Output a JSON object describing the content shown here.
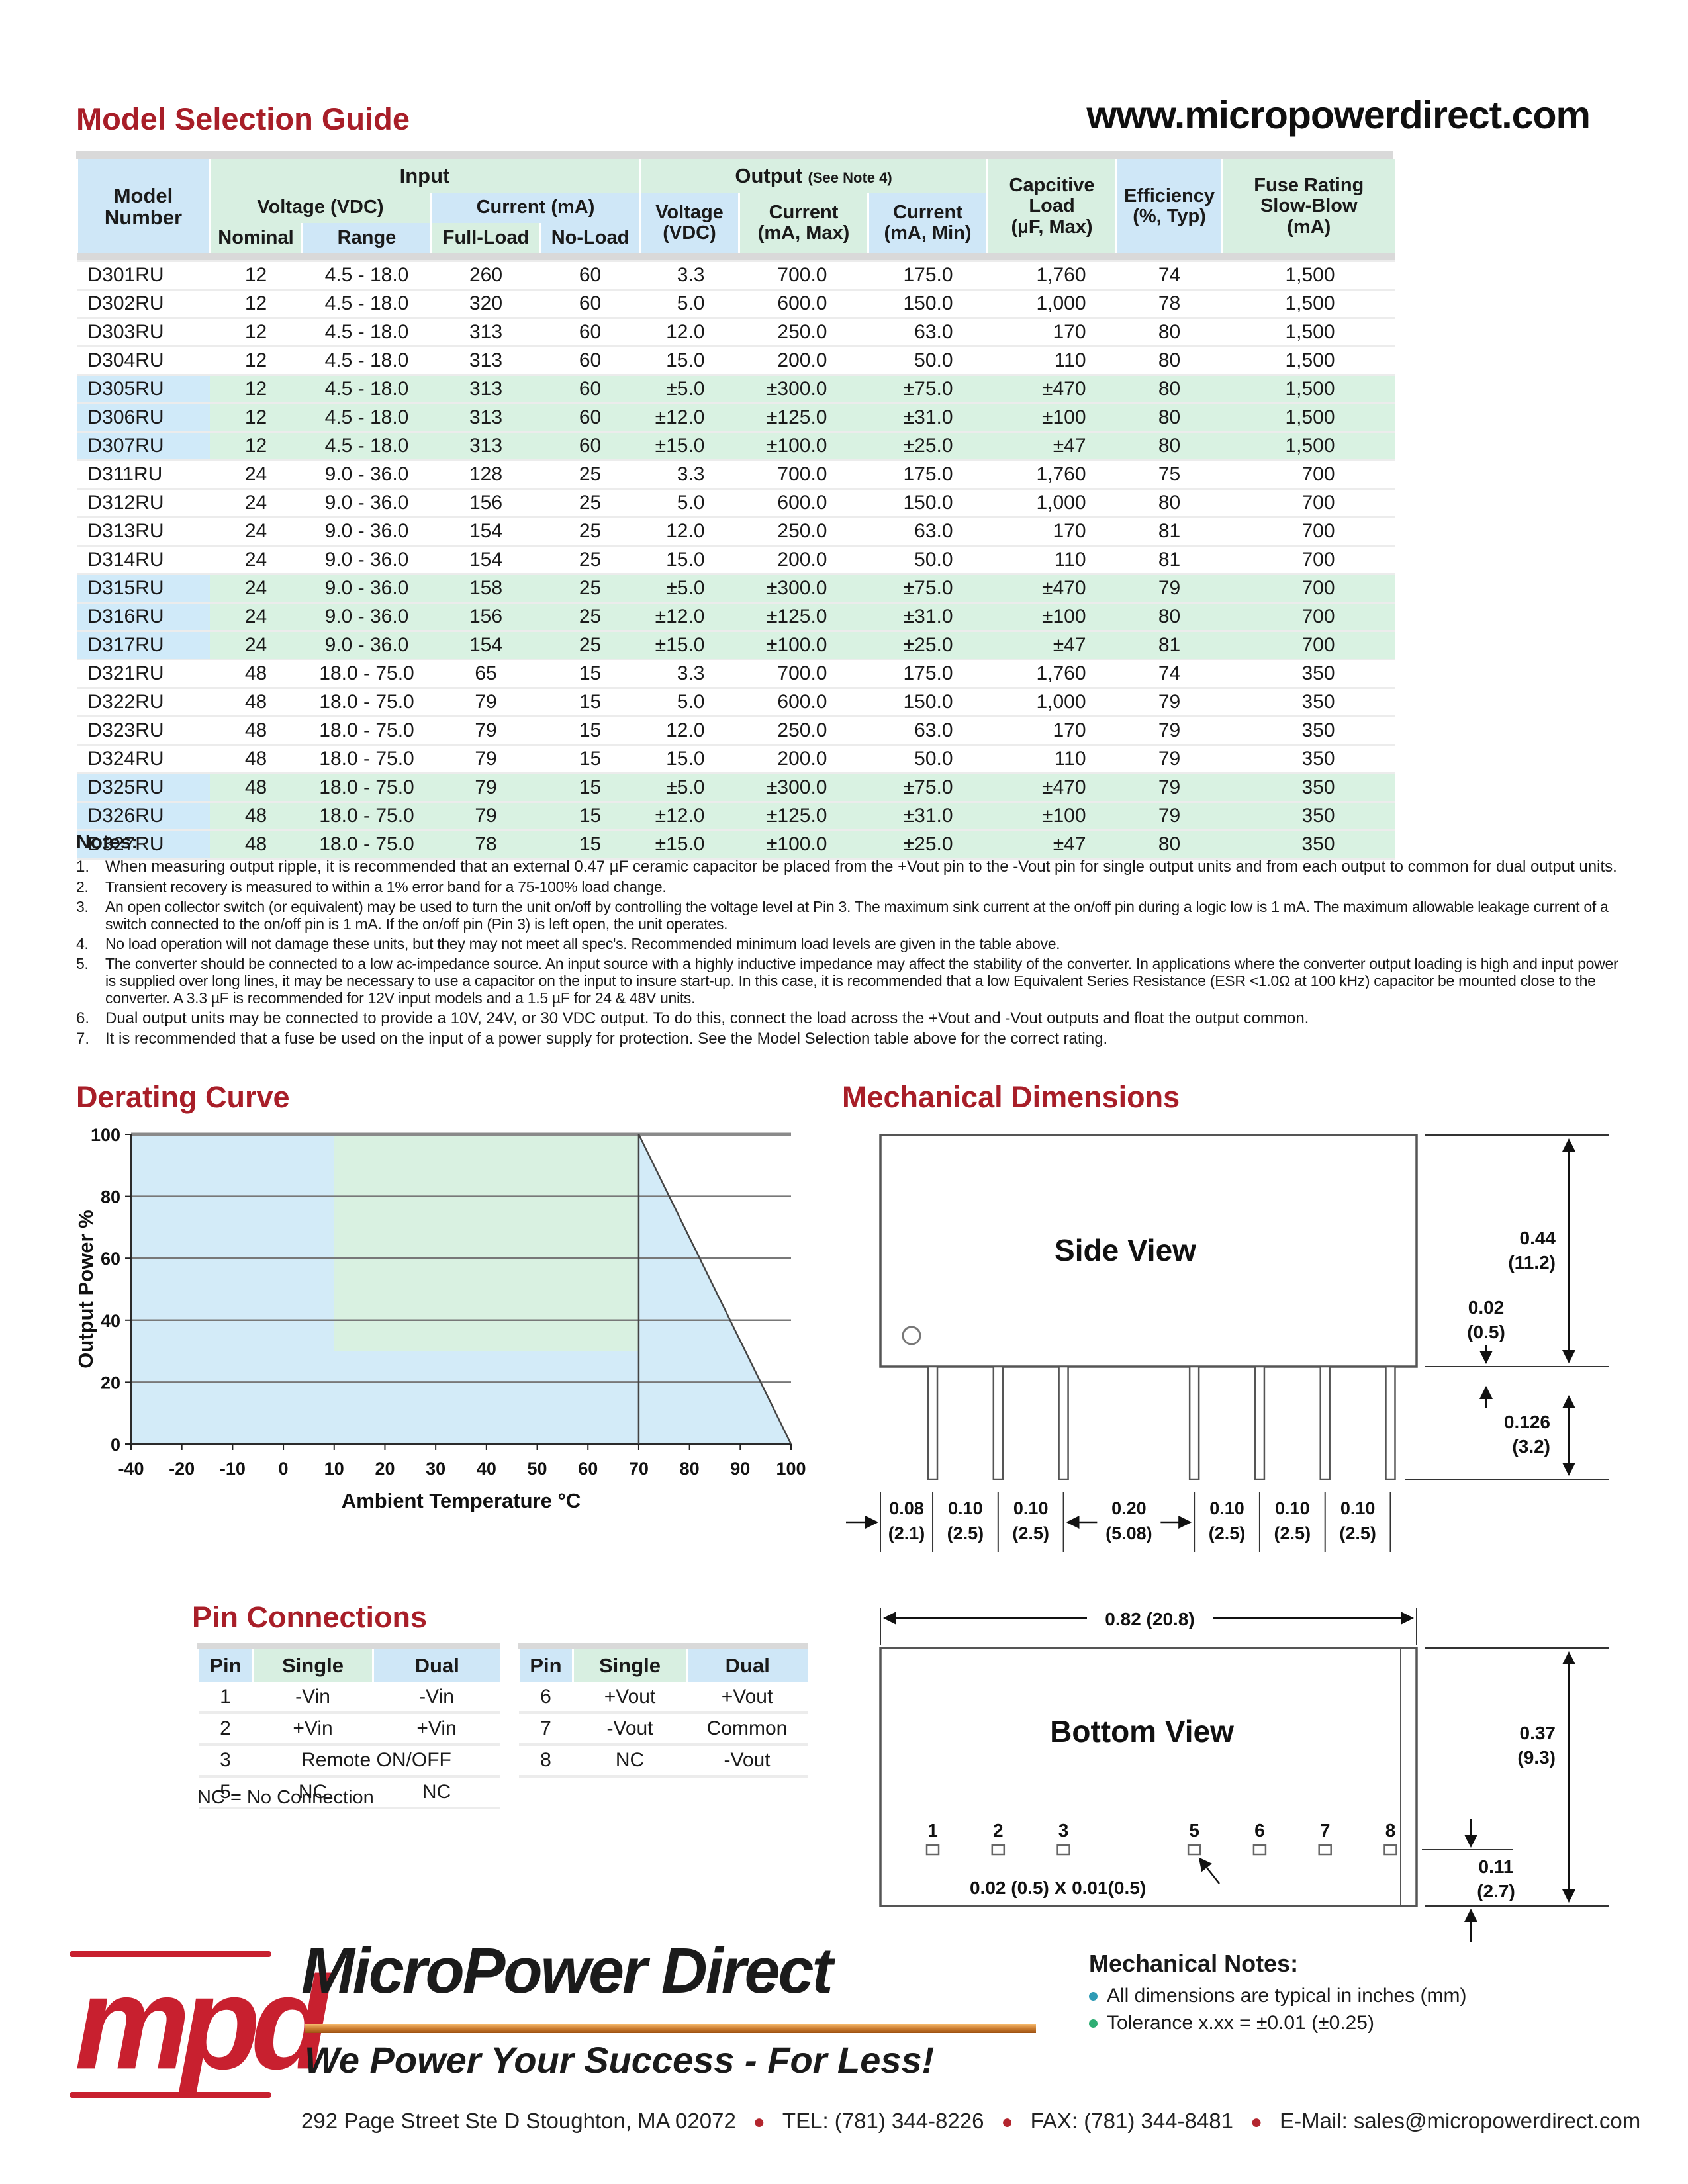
{
  "page": {
    "title": "Model Selection Guide",
    "url": "www.micropowerdirect.com"
  },
  "model_table": {
    "groups": {
      "model": "Model\nNumber",
      "input": "Input",
      "output": "Output",
      "output_note": "(See Note 4)",
      "cap": "Capcitive\nLoad\n(µF, Max)",
      "eff": "Efficiency\n(%, Typ)",
      "fuse": "Fuse Rating\nSlow-Blow\n(mA)"
    },
    "sub": {
      "voltage_in": "Voltage (VDC)",
      "current_in": "Current (mA)",
      "voltage_out": "Voltage\n(VDC)",
      "current_max": "Current\n(mA, Max)",
      "current_min": "Current\n(mA, Min)"
    },
    "cols": {
      "nominal": "Nominal",
      "range": "Range",
      "full_load": "Full-Load",
      "no_load": "No-Load"
    },
    "rows": [
      {
        "m": "D301RU",
        "vn": "12",
        "vr": "4.5 - 18.0",
        "fl": "260",
        "nl": "60",
        "vo": "3.3",
        "imax": "700.0",
        "imin": "175.0",
        "cl": "1,760",
        "ef": "74",
        "fu": "1,500",
        "dual": false
      },
      {
        "m": "D302RU",
        "vn": "12",
        "vr": "4.5 - 18.0",
        "fl": "320",
        "nl": "60",
        "vo": "5.0",
        "imax": "600.0",
        "imin": "150.0",
        "cl": "1,000",
        "ef": "78",
        "fu": "1,500",
        "dual": false
      },
      {
        "m": "D303RU",
        "vn": "12",
        "vr": "4.5 - 18.0",
        "fl": "313",
        "nl": "60",
        "vo": "12.0",
        "imax": "250.0",
        "imin": "63.0",
        "cl": "170",
        "ef": "80",
        "fu": "1,500",
        "dual": false
      },
      {
        "m": "D304RU",
        "vn": "12",
        "vr": "4.5 - 18.0",
        "fl": "313",
        "nl": "60",
        "vo": "15.0",
        "imax": "200.0",
        "imin": "50.0",
        "cl": "110",
        "ef": "80",
        "fu": "1,500",
        "dual": false
      },
      {
        "m": "D305RU",
        "vn": "12",
        "vr": "4.5 - 18.0",
        "fl": "313",
        "nl": "60",
        "vo": "±5.0",
        "imax": "±300.0",
        "imin": "±75.0",
        "cl": "±470",
        "ef": "80",
        "fu": "1,500",
        "dual": true
      },
      {
        "m": "D306RU",
        "vn": "12",
        "vr": "4.5 - 18.0",
        "fl": "313",
        "nl": "60",
        "vo": "±12.0",
        "imax": "±125.0",
        "imin": "±31.0",
        "cl": "±100",
        "ef": "80",
        "fu": "1,500",
        "dual": true
      },
      {
        "m": "D307RU",
        "vn": "12",
        "vr": "4.5 - 18.0",
        "fl": "313",
        "nl": "60",
        "vo": "±15.0",
        "imax": "±100.0",
        "imin": "±25.0",
        "cl": "±47",
        "ef": "80",
        "fu": "1,500",
        "dual": true
      },
      {
        "m": "D311RU",
        "vn": "24",
        "vr": "9.0 - 36.0",
        "fl": "128",
        "nl": "25",
        "vo": "3.3",
        "imax": "700.0",
        "imin": "175.0",
        "cl": "1,760",
        "ef": "75",
        "fu": "700",
        "dual": false
      },
      {
        "m": "D312RU",
        "vn": "24",
        "vr": "9.0 - 36.0",
        "fl": "156",
        "nl": "25",
        "vo": "5.0",
        "imax": "600.0",
        "imin": "150.0",
        "cl": "1,000",
        "ef": "80",
        "fu": "700",
        "dual": false
      },
      {
        "m": "D313RU",
        "vn": "24",
        "vr": "9.0 - 36.0",
        "fl": "154",
        "nl": "25",
        "vo": "12.0",
        "imax": "250.0",
        "imin": "63.0",
        "cl": "170",
        "ef": "81",
        "fu": "700",
        "dual": false
      },
      {
        "m": "D314RU",
        "vn": "24",
        "vr": "9.0 - 36.0",
        "fl": "154",
        "nl": "25",
        "vo": "15.0",
        "imax": "200.0",
        "imin": "50.0",
        "cl": "110",
        "ef": "81",
        "fu": "700",
        "dual": false
      },
      {
        "m": "D315RU",
        "vn": "24",
        "vr": "9.0 - 36.0",
        "fl": "158",
        "nl": "25",
        "vo": "±5.0",
        "imax": "±300.0",
        "imin": "±75.0",
        "cl": "±470",
        "ef": "79",
        "fu": "700",
        "dual": true
      },
      {
        "m": "D316RU",
        "vn": "24",
        "vr": "9.0 - 36.0",
        "fl": "156",
        "nl": "25",
        "vo": "±12.0",
        "imax": "±125.0",
        "imin": "±31.0",
        "cl": "±100",
        "ef": "80",
        "fu": "700",
        "dual": true
      },
      {
        "m": "D317RU",
        "vn": "24",
        "vr": "9.0 - 36.0",
        "fl": "154",
        "nl": "25",
        "vo": "±15.0",
        "imax": "±100.0",
        "imin": "±25.0",
        "cl": "±47",
        "ef": "81",
        "fu": "700",
        "dual": true
      },
      {
        "m": "D321RU",
        "vn": "48",
        "vr": "18.0 - 75.0",
        "fl": "65",
        "nl": "15",
        "vo": "3.3",
        "imax": "700.0",
        "imin": "175.0",
        "cl": "1,760",
        "ef": "74",
        "fu": "350",
        "dual": false
      },
      {
        "m": "D322RU",
        "vn": "48",
        "vr": "18.0 - 75.0",
        "fl": "79",
        "nl": "15",
        "vo": "5.0",
        "imax": "600.0",
        "imin": "150.0",
        "cl": "1,000",
        "ef": "79",
        "fu": "350",
        "dual": false
      },
      {
        "m": "D323RU",
        "vn": "48",
        "vr": "18.0 - 75.0",
        "fl": "79",
        "nl": "15",
        "vo": "12.0",
        "imax": "250.0",
        "imin": "63.0",
        "cl": "170",
        "ef": "79",
        "fu": "350",
        "dual": false
      },
      {
        "m": "D324RU",
        "vn": "48",
        "vr": "18.0 - 75.0",
        "fl": "79",
        "nl": "15",
        "vo": "15.0",
        "imax": "200.0",
        "imin": "50.0",
        "cl": "110",
        "ef": "79",
        "fu": "350",
        "dual": false
      },
      {
        "m": "D325RU",
        "vn": "48",
        "vr": "18.0 - 75.0",
        "fl": "79",
        "nl": "15",
        "vo": "±5.0",
        "imax": "±300.0",
        "imin": "±75.0",
        "cl": "±470",
        "ef": "79",
        "fu": "350",
        "dual": true
      },
      {
        "m": "D326RU",
        "vn": "48",
        "vr": "18.0 - 75.0",
        "fl": "79",
        "nl": "15",
        "vo": "±12.0",
        "imax": "±125.0",
        "imin": "±31.0",
        "cl": "±100",
        "ef": "79",
        "fu": "350",
        "dual": true
      },
      {
        "m": "D327RU",
        "vn": "48",
        "vr": "18.0 - 75.0",
        "fl": "78",
        "nl": "15",
        "vo": "±15.0",
        "imax": "±100.0",
        "imin": "±25.0",
        "cl": "±47",
        "ef": "80",
        "fu": "350",
        "dual": true
      }
    ]
  },
  "notes": {
    "title": "Notes:",
    "items": [
      {
        "t": "When measuring output ripple, it is recommended that an external 0.47 µF ceramic capacitor be placed from the +Vout pin to the -Vout pin for single output units and from each output to common for dual output units.",
        "c": false
      },
      {
        "t": "Transient recovery is measured to within a 1% error band for a 75-100% load change.",
        "c": true
      },
      {
        "t": "An open collector switch (or equivalent) may be used to turn the unit on/off by controlling the voltage level at Pin 3. The maximum sink current at the on/off pin during a logic low is 1 mA. The maximum allowable leakage current of a switch connected to the on/off pin is 1 mA. If the on/off pin (Pin 3) is left open, the unit operates.",
        "c": true
      },
      {
        "t": "No load operation will not damage these units, but they may not meet all spec's. Recommended minimum load levels are given in the table above.",
        "c": true
      },
      {
        "t": "The converter should be connected to a low ac-impedance source. An input source with a highly inductive impedance may affect the stability of the converter. In applications where the converter output loading is high and input power is supplied over long lines, it may be necessary to use a capacitor on the input to insure start-up. In this case, it is recommended that a low Equivalent Series Resistance (ESR <1.0Ω at 100 kHz) capacitor be mounted close to the converter. A 3.3 µF is recommended for 12V input models and a 1.5 µF for 24 & 48V units.",
        "c": true
      },
      {
        "t": "Dual output units may be connected to provide a 10V, 24V, or 30 VDC output. To do this, connect the load across the +Vout and -Vout outputs and float the output common.",
        "c": false
      },
      {
        "t": "It is recommended that a fuse be used on the input of a power supply for protection. See the Model Selection table above for the correct rating.",
        "c": false
      }
    ]
  },
  "chart_data": {
    "type": "area",
    "title": "Derating Curve",
    "xlabel": "Ambient Temperature °C",
    "ylabel": "Output Power %",
    "x_ticks": [
      "-40",
      "-20",
      "-10",
      "0",
      "10",
      "20",
      "30",
      "40",
      "50",
      "60",
      "70",
      "80",
      "90",
      "100"
    ],
    "y_ticks": [
      "0",
      "20",
      "40",
      "60",
      "80",
      "100"
    ],
    "ylim": [
      0,
      100
    ],
    "curve": [
      [
        "-40",
        100
      ],
      [
        "70",
        100
      ],
      [
        "100",
        0
      ]
    ],
    "green_region": {
      "x": [
        "10",
        "70"
      ],
      "y": [
        30,
        100
      ]
    },
    "colors": {
      "area_blue": "#d3ebf8",
      "area_green": "#d9f1e1",
      "grid": "#787878",
      "axis": "#2b2b2b",
      "line": "#444444"
    }
  },
  "mech": {
    "title": "Mechanical Dimensions",
    "side": {
      "label": "Side View",
      "case_h": [
        "0.44",
        "(11.2)"
      ],
      "standoff": [
        "0.02",
        "(0.5)"
      ],
      "pin_len": [
        "0.126",
        "(3.2)"
      ],
      "spacings": [
        {
          "in": "0.08",
          "mm": "(2.1)"
        },
        {
          "in": "0.10",
          "mm": "(2.5)"
        },
        {
          "in": "0.10",
          "mm": "(2.5)"
        },
        {
          "in": "0.20",
          "mm": "(5.08)"
        },
        {
          "in": "0.10",
          "mm": "(2.5)"
        },
        {
          "in": "0.10",
          "mm": "(2.5)"
        },
        {
          "in": "0.10",
          "mm": "(2.5)"
        }
      ]
    },
    "bottom": {
      "label": "Bottom View",
      "width_dim": "0.82 (20.8)",
      "depth": [
        "0.37",
        "(9.3)"
      ],
      "pin_inset": [
        "0.11",
        "(2.7)"
      ],
      "pad": "0.02 (0.5) X 0.01(0.5)",
      "pins": [
        "1",
        "2",
        "3",
        "5",
        "6",
        "7",
        "8"
      ]
    },
    "notes": {
      "title": "Mechanical Notes:",
      "items": [
        "All dimensions are typical in inches (mm)",
        "Tolerance x.xx = ±0.01 (±0.25)"
      ]
    }
  },
  "pins": {
    "title": "Pin Connections",
    "headers": [
      "Pin",
      "Single",
      "Dual"
    ],
    "left": [
      [
        "1",
        "-Vin",
        "-Vin"
      ],
      [
        "2",
        "+Vin",
        "+Vin"
      ],
      [
        "3",
        "Remote ON/OFF"
      ],
      [
        "5",
        "NC",
        "NC"
      ]
    ],
    "right": [
      [
        "6",
        "+Vout",
        "+Vout"
      ],
      [
        "7",
        "-Vout",
        "Common"
      ],
      [
        "8",
        "NC",
        "-Vout"
      ]
    ],
    "footnote": "NC = No Connection"
  },
  "footer": {
    "logo": "mpd",
    "brand": "MicroPower Direct",
    "tagline": "We Power Your Success - For Less!",
    "address": "292 Page Street Ste D Stoughton, MA 02072",
    "tel": "TEL: (781) 344-8226",
    "fax": "FAX: (781) 344-8481",
    "email": "E-Mail: sales@micropowerdirect.com"
  }
}
